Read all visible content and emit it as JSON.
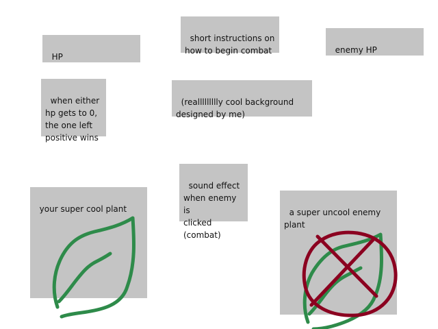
{
  "hp_label": "HP",
  "instructions_note": "short instructions on\nhow to begin combat",
  "enemy_hp_label": "enemy HP",
  "win_rule_note": "when either\nhp gets to 0,\nthe one left\npositive wins",
  "background_note": "(reallllllllly cool background\ndesigned by me)",
  "sound_note": "sound effect\nwhen enemy is\nclicked\n(combat)",
  "player_plant_label": "your super cool plant",
  "enemy_plant_label": "a super uncool enemy\nplant",
  "colors": {
    "box_fill": "#c4c4c4",
    "leaf_green": "#2e8b4a",
    "cross_red": "#8b0020"
  },
  "icons": {
    "player_plant": "leaf-icon",
    "enemy_plant": "leaf-icon",
    "enemy_marker": "cross-out-icon"
  }
}
